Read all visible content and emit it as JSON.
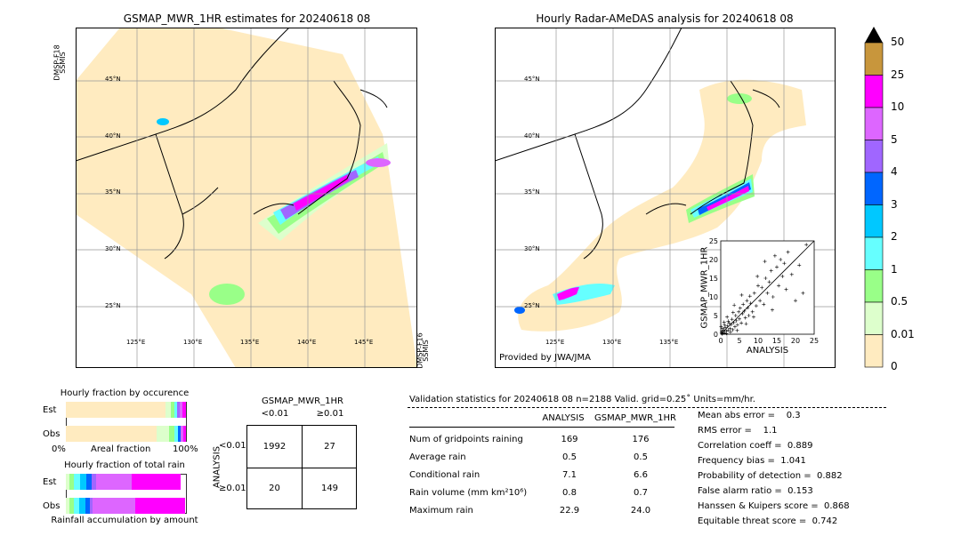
{
  "left_map": {
    "title": "GSMAP_MWR_1HR estimates for 20240618 08",
    "sat_top_line1": "DMSP-F18",
    "sat_top_line2": "SSMIS",
    "sat_bottom_line1": "DMSP-F16",
    "sat_bottom_line2": "SSMIS",
    "lat_labels": [
      "45°N",
      "40°N",
      "35°N",
      "30°N",
      "25°N"
    ],
    "lon_labels": [
      "125°E",
      "130°E",
      "135°E",
      "140°E",
      "145°E"
    ]
  },
  "right_map": {
    "title": "Hourly Radar-AMeDAS analysis for 20240618 08",
    "credit": "Provided by JWA/JMA",
    "lat_labels": [
      "45°N",
      "40°N",
      "35°N",
      "30°N",
      "25°N"
    ],
    "lon_labels": [
      "125°E",
      "130°E",
      "135°E"
    ]
  },
  "colorbar": {
    "labels": [
      "50",
      "25",
      "10",
      "5",
      "4",
      "3",
      "2",
      "1",
      "0.5",
      "0.01",
      "0"
    ],
    "colors": [
      "#c8963c",
      "#ff00ff",
      "#dd66ff",
      "#a066ff",
      "#0066ff",
      "#00c8ff",
      "#66ffff",
      "#99ff88",
      "#ddffcc",
      "#ffebc0"
    ]
  },
  "scatter_inset": {
    "xlabel": "ANALYSIS",
    "ylabel": "GSMAP_MWR_1HR",
    "ticks": [
      "0",
      "5",
      "10",
      "15",
      "20",
      "25"
    ]
  },
  "occurrence_chart": {
    "title": "Hourly fraction by occurence",
    "rows": [
      "Est",
      "Obs"
    ],
    "axis_left": "0%",
    "axis_mid": "Areal fraction",
    "axis_right": "100%"
  },
  "amount_chart": {
    "title": "Hourly fraction of total rain",
    "rows": [
      "Est",
      "Obs"
    ],
    "footer": "Rainfall accumulation by amount"
  },
  "contingency": {
    "title": "GSMAP_MWR_1HR",
    "col_headers": [
      "<0.01",
      "≥0.01"
    ],
    "row_axis": "ANALYSIS",
    "row_headers": [
      "<0.01",
      "≥0.01"
    ],
    "cells": [
      [
        "1992",
        "27"
      ],
      [
        "20",
        "149"
      ]
    ]
  },
  "validation": {
    "header": "Validation statistics for 20240618 08  n=2188 Valid. grid=0.25˚ Units=mm/hr.",
    "col_analysis": "ANALYSIS",
    "col_gsmap": "GSMAP_MWR_1HR",
    "rows": [
      {
        "label": "Num of gridpoints raining",
        "a": "169",
        "g": "176"
      },
      {
        "label": "Average rain",
        "a": "0.5",
        "g": "0.5"
      },
      {
        "label": "Conditional rain",
        "a": "7.1",
        "g": "6.6"
      },
      {
        "label": "Rain volume (mm km²10⁶)",
        "a": "0.8",
        "g": "0.7"
      },
      {
        "label": "Maximum rain",
        "a": "22.9",
        "g": "24.0"
      }
    ],
    "scores": [
      "Mean abs error =    0.3",
      "RMS error =    1.1",
      "Correlation coeff =  0.889",
      "Frequency bias =  1.041",
      "Probability of detection =  0.882",
      "False alarm ratio =  0.153",
      "Hanssen & Kuipers score =  0.868",
      "Equitable threat score =  0.742"
    ]
  },
  "chart_data": {
    "type": "scatter",
    "title": "",
    "xlabel": "ANALYSIS",
    "ylabel": "GSMAP_MWR_1HR",
    "xlim": [
      0,
      25
    ],
    "ylim": [
      0,
      25
    ],
    "points": [
      [
        0.2,
        0.3
      ],
      [
        0.5,
        0.2
      ],
      [
        0.8,
        1.0
      ],
      [
        1.0,
        0.4
      ],
      [
        1.2,
        1.8
      ],
      [
        1.5,
        0.8
      ],
      [
        1.8,
        2.2
      ],
      [
        2.0,
        1.1
      ],
      [
        2.2,
        3.0
      ],
      [
        2.5,
        1.5
      ],
      [
        2.8,
        2.6
      ],
      [
        3.0,
        4.0
      ],
      [
        3.2,
        1.2
      ],
      [
        3.5,
        3.1
      ],
      [
        3.8,
        2.0
      ],
      [
        4.0,
        5.0
      ],
      [
        4.2,
        3.6
      ],
      [
        4.5,
        2.5
      ],
      [
        4.8,
        6.0
      ],
      [
        5.0,
        4.1
      ],
      [
        5.2,
        7.0
      ],
      [
        5.5,
        3.0
      ],
      [
        5.8,
        5.5
      ],
      [
        6.0,
        8.0
      ],
      [
        6.3,
        6.2
      ],
      [
        6.6,
        4.4
      ],
      [
        7.0,
        9.0
      ],
      [
        7.2,
        7.1
      ],
      [
        7.5,
        5.0
      ],
      [
        7.8,
        10.2
      ],
      [
        8.0,
        8.3
      ],
      [
        8.5,
        6.0
      ],
      [
        9.0,
        11.0
      ],
      [
        9.5,
        7.6
      ],
      [
        10.0,
        13.0
      ],
      [
        10.5,
        9.0
      ],
      [
        11.0,
        12.5
      ],
      [
        11.5,
        8.0
      ],
      [
        12.0,
        15.0
      ],
      [
        12.5,
        11.0
      ],
      [
        13.0,
        14.0
      ],
      [
        13.5,
        17.0
      ],
      [
        14.0,
        10.0
      ],
      [
        15.0,
        18.0
      ],
      [
        15.5,
        13.0
      ],
      [
        16.0,
        20.0
      ],
      [
        16.5,
        15.5
      ],
      [
        17.0,
        19.0
      ],
      [
        17.5,
        12.0
      ],
      [
        18.0,
        22.0
      ],
      [
        19.0,
        16.0
      ],
      [
        20.0,
        9.0
      ],
      [
        21.0,
        18.5
      ],
      [
        22.0,
        11.0
      ],
      [
        22.9,
        24.0
      ],
      [
        0.5,
        1.5
      ],
      [
        1.0,
        2.5
      ],
      [
        1.5,
        0.2
      ],
      [
        2.0,
        3.5
      ],
      [
        0.3,
        0.8
      ],
      [
        2.6,
        0.6
      ],
      [
        3.3,
        5.8
      ],
      [
        4.4,
        1.0
      ],
      [
        0.9,
        3.2
      ],
      [
        6.8,
        2.8
      ],
      [
        8.8,
        4.6
      ],
      [
        9.8,
        15.5
      ],
      [
        11.8,
        19.5
      ],
      [
        14.5,
        21.0
      ],
      [
        13.8,
        6.5
      ],
      [
        5.6,
        10.5
      ],
      [
        3.6,
        7.8
      ],
      [
        1.7,
        4.6
      ],
      [
        0.1,
        2.0
      ],
      [
        0.4,
        0.1
      ]
    ]
  }
}
